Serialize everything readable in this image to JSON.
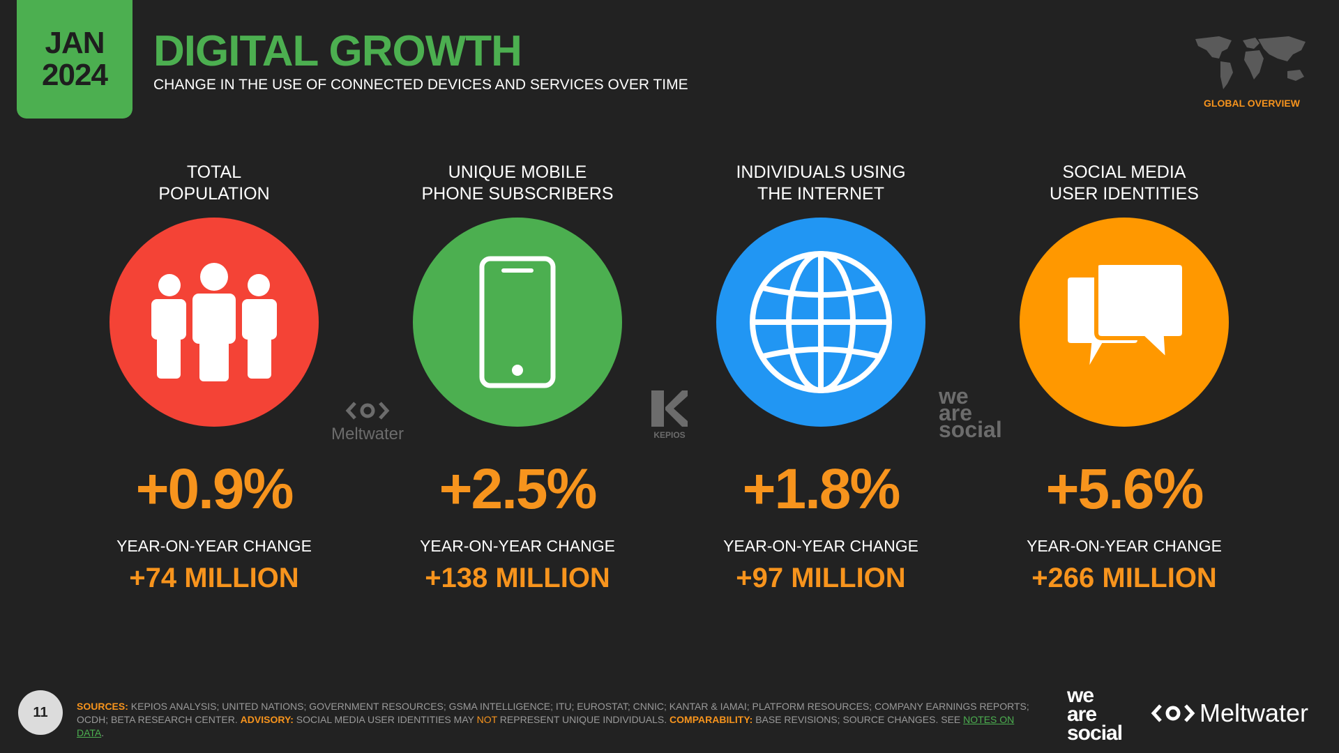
{
  "header": {
    "month": "JAN",
    "year": "2024",
    "title": "DIGITAL GROWTH",
    "subtitle": "CHANGE IN THE USE OF CONNECTED DEVICES AND SERVICES OVER TIME",
    "section": "GLOBAL OVERVIEW"
  },
  "stats": [
    {
      "title": "TOTAL\nPOPULATION",
      "value": "+0.9%",
      "caption": "YEAR-ON-YEAR CHANGE",
      "absolute": "+74 MILLION",
      "color": "#f44336",
      "icon": "people-icon"
    },
    {
      "title": "UNIQUE MOBILE\nPHONE SUBSCRIBERS",
      "value": "+2.5%",
      "caption": "YEAR-ON-YEAR CHANGE",
      "absolute": "+138 MILLION",
      "color": "#4caf50",
      "icon": "mobile-phone-icon"
    },
    {
      "title": "INDIVIDUALS USING\nTHE INTERNET",
      "value": "+1.8%",
      "caption": "YEAR-ON-YEAR CHANGE",
      "absolute": "+97 MILLION",
      "color": "#2196f3",
      "icon": "globe-icon"
    },
    {
      "title": "SOCIAL MEDIA\nUSER IDENTITIES",
      "value": "+5.6%",
      "caption": "YEAR-ON-YEAR CHANGE",
      "absolute": "+266 MILLION",
      "color": "#ff9800",
      "icon": "chat-bubbles-icon"
    }
  ],
  "partners": {
    "meltwater": "Meltwater",
    "kepios": "KEPIOS",
    "we_are_social": [
      "we",
      "are",
      "social"
    ]
  },
  "footer": {
    "page_number": "11",
    "sources_label": "SOURCES:",
    "sources_text": "KEPIOS ANALYSIS; UNITED NATIONS; GOVERNMENT RESOURCES; GSMA INTELLIGENCE; ITU; EUROSTAT; CNNIC; KANTAR & IAMAI; PLATFORM RESOURCES; COMPANY EARNINGS REPORTS; OCDH; BETA RESEARCH CENTER.",
    "advisory_label": "ADVISORY:",
    "advisory_text_1": "SOCIAL MEDIA USER IDENTITIES MAY",
    "advisory_not": "NOT",
    "advisory_text_2": "REPRESENT UNIQUE INDIVIDUALS.",
    "comparability_label": "COMPARABILITY:",
    "comparability_text": "BASE REVISIONS; SOURCE CHANGES. SEE",
    "notes_link": "NOTES ON DATA",
    "logo_was": [
      "we",
      "are",
      "social"
    ],
    "logo_meltwater": "Meltwater"
  }
}
